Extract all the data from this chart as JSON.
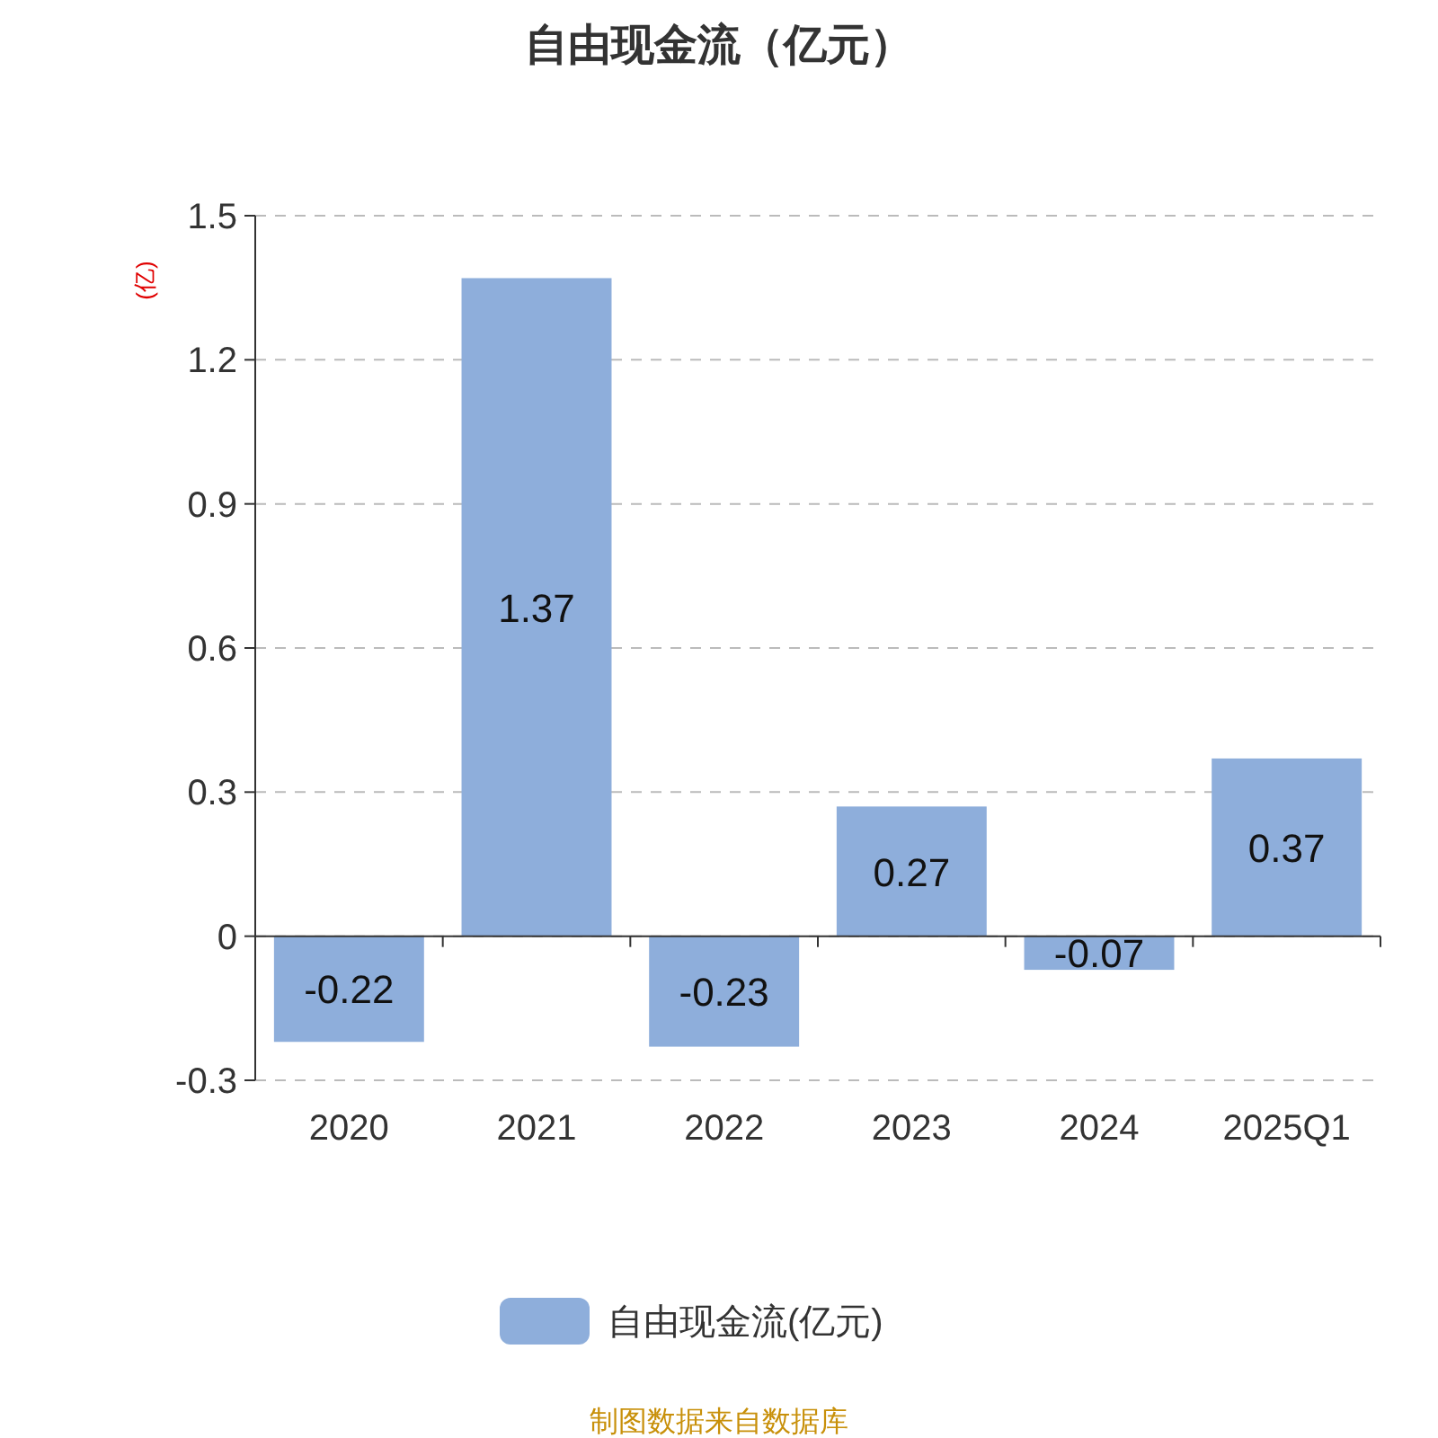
{
  "chart_data": {
    "type": "bar",
    "title": "自由现金流（亿元）",
    "ylabel": "(亿)",
    "categories": [
      "2020",
      "2021",
      "2022",
      "2023",
      "2024",
      "2025Q1"
    ],
    "series": [
      {
        "name": "自由现金流(亿元)",
        "color": "#8eaedb",
        "values": [
          -0.22,
          1.37,
          -0.23,
          0.27,
          -0.07,
          0.37
        ]
      }
    ],
    "ylim": [
      -0.3,
      1.5
    ],
    "yticks": [
      -0.3,
      0,
      0.3,
      0.6,
      0.9,
      1.2,
      1.5
    ],
    "grid": "y",
    "legend": "bottom",
    "data_labels": true,
    "annotations": [
      "制图数据来自数据库"
    ]
  }
}
